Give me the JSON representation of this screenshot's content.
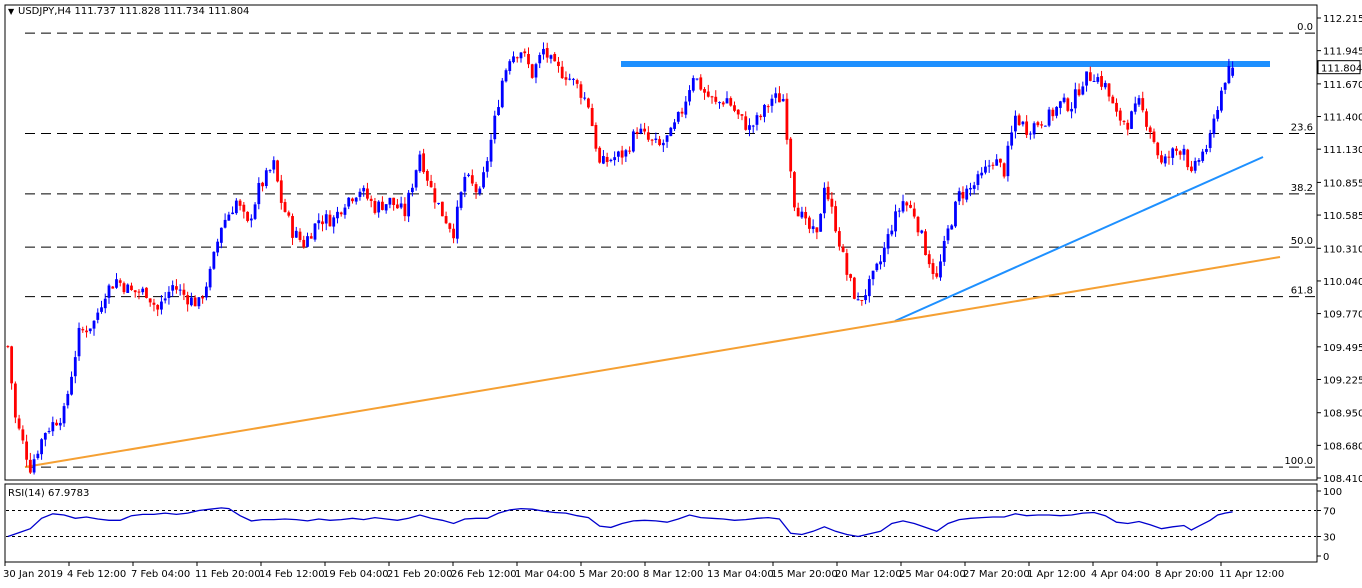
{
  "header": {
    "symbol_text": "USDJPY,H4  111.737 111.828 111.734 111.804",
    "indicator_text": "RSI(14) 67.9783"
  },
  "colors": {
    "bull": "#0000ff",
    "bear": "#ff0000",
    "resistance": "#1e90ff",
    "support_blue": "#1e90ff",
    "support_orange": "#f5a033",
    "rsi_line": "#0000cd",
    "fib_line": "#000000",
    "price_box": "#ffffff",
    "price_box_text": "#000000"
  },
  "chart_data": [
    {
      "type": "candlestick",
      "instrument": "USDJPY",
      "timeframe": "H4",
      "ohlc": {
        "open": 111.737,
        "high": 111.828,
        "low": 111.734,
        "close": 111.804
      },
      "current_price": 111.804,
      "current_price_label": "111.804",
      "ylim": [
        108.41,
        112.25
      ],
      "y_ticks": [
        112.215,
        111.945,
        111.67,
        111.4,
        111.13,
        110.855,
        110.585,
        110.31,
        110.04,
        109.77,
        109.495,
        109.225,
        108.95,
        108.68,
        108.41
      ],
      "y_tick_labels": [
        "112.215",
        "111.945",
        "111.670",
        "111.400",
        "111.130",
        "110.855",
        "110.585",
        "110.310",
        "110.040",
        "109.770",
        "109.495",
        "109.225",
        "108.950",
        "108.680",
        "108.410"
      ],
      "x_tick_labels": [
        "30 Jan 2019",
        "4 Feb 12:00",
        "7 Feb 04:00",
        "11 Feb 20:00",
        "14 Feb 12:00",
        "19 Feb 04:00",
        "21 Feb 20:00",
        "26 Feb 12:00",
        "1 Mar 04:00",
        "5 Mar 20:00",
        "8 Mar 12:00",
        "13 Mar 04:00",
        "15 Mar 20:00",
        "20 Mar 12:00",
        "25 Mar 04:00",
        "27 Mar 20:00",
        "1 Apr 12:00",
        "4 Apr 04:00",
        "8 Apr 20:00",
        "11 Apr 12:00"
      ],
      "fibonacci": [
        {
          "label": "0.0",
          "price": 112.09
        },
        {
          "label": "23.6",
          "price": 111.26
        },
        {
          "label": "38.2",
          "price": 110.76
        },
        {
          "label": "50.0",
          "price": 110.32
        },
        {
          "label": "61.8",
          "price": 109.91
        },
        {
          "label": "100.0",
          "price": 108.5
        }
      ],
      "price_path": [
        [
          0,
          109.5
        ],
        [
          2,
          108.9
        ],
        [
          6,
          108.5
        ],
        [
          10,
          108.8
        ],
        [
          15,
          108.95
        ],
        [
          19,
          109.6
        ],
        [
          23,
          109.7
        ],
        [
          26,
          109.95
        ],
        [
          29,
          110.05
        ],
        [
          33,
          109.95
        ],
        [
          37,
          109.95
        ],
        [
          40,
          109.8
        ],
        [
          44,
          110.0
        ],
        [
          48,
          109.9
        ],
        [
          51,
          109.85
        ],
        [
          54,
          110.1
        ],
        [
          57,
          110.5
        ],
        [
          61,
          110.7
        ],
        [
          64,
          110.5
        ],
        [
          67,
          110.8
        ],
        [
          71,
          111.0
        ],
        [
          73,
          110.7
        ],
        [
          76,
          110.45
        ],
        [
          79,
          110.35
        ],
        [
          83,
          110.55
        ],
        [
          87,
          110.55
        ],
        [
          90,
          110.7
        ],
        [
          94,
          110.8
        ],
        [
          98,
          110.65
        ],
        [
          102,
          110.7
        ],
        [
          106,
          110.6
        ],
        [
          110,
          111.1
        ],
        [
          113,
          110.8
        ],
        [
          116,
          110.6
        ],
        [
          119,
          110.45
        ],
        [
          122,
          110.9
        ],
        [
          126,
          110.75
        ],
        [
          129,
          111.2
        ],
        [
          132,
          111.7
        ],
        [
          134,
          111.9
        ],
        [
          137,
          111.95
        ],
        [
          140,
          111.75
        ],
        [
          143,
          111.95
        ],
        [
          146,
          111.8
        ],
        [
          149,
          111.75
        ],
        [
          152,
          111.65
        ],
        [
          155,
          111.5
        ],
        [
          158,
          111.0
        ],
        [
          161,
          111.05
        ],
        [
          165,
          111.1
        ],
        [
          168,
          111.3
        ],
        [
          171,
          111.2
        ],
        [
          174,
          111.15
        ],
        [
          177,
          111.25
        ],
        [
          180,
          111.45
        ],
        [
          183,
          111.75
        ],
        [
          186,
          111.6
        ],
        [
          189,
          111.5
        ],
        [
          192,
          111.55
        ],
        [
          195,
          111.4
        ],
        [
          198,
          111.3
        ],
        [
          201,
          111.4
        ],
        [
          204,
          111.55
        ],
        [
          207,
          111.55
        ],
        [
          210,
          110.7
        ],
        [
          213,
          110.5
        ],
        [
          216,
          110.4
        ],
        [
          218,
          110.85
        ],
        [
          221,
          110.5
        ],
        [
          224,
          110.1
        ],
        [
          227,
          109.85
        ],
        [
          230,
          110.0
        ],
        [
          233,
          110.2
        ],
        [
          236,
          110.5
        ],
        [
          239,
          110.7
        ],
        [
          242,
          110.6
        ],
        [
          245,
          110.3
        ],
        [
          248,
          110.05
        ],
        [
          251,
          110.45
        ],
        [
          254,
          110.75
        ],
        [
          257,
          110.8
        ],
        [
          260,
          110.9
        ],
        [
          263,
          111.05
        ],
        [
          266,
          110.95
        ],
        [
          269,
          111.4
        ],
        [
          272,
          111.3
        ],
        [
          275,
          111.35
        ],
        [
          278,
          111.4
        ],
        [
          281,
          111.5
        ],
        [
          284,
          111.5
        ],
        [
          287,
          111.7
        ],
        [
          290,
          111.75
        ],
        [
          293,
          111.65
        ],
        [
          296,
          111.4
        ],
        [
          299,
          111.35
        ],
        [
          302,
          111.5
        ],
        [
          305,
          111.3
        ],
        [
          308,
          111.0
        ],
        [
          311,
          111.1
        ],
        [
          314,
          111.15
        ],
        [
          316,
          110.9
        ],
        [
          318,
          111.05
        ],
        [
          321,
          111.2
        ],
        [
          323,
          111.5
        ],
        [
          325,
          111.72
        ],
        [
          327,
          111.804
        ]
      ],
      "rsi": {
        "name": "RSI(14)",
        "value": 67.9783,
        "ylim": [
          0,
          100
        ],
        "ticks": [
          100,
          70,
          30,
          0
        ],
        "levels": [
          70,
          30
        ],
        "values": [
          [
            0,
            30
          ],
          [
            3,
            36
          ],
          [
            6,
            42
          ],
          [
            9,
            58
          ],
          [
            12,
            65
          ],
          [
            15,
            63
          ],
          [
            18,
            58
          ],
          [
            21,
            60
          ],
          [
            24,
            57
          ],
          [
            27,
            55
          ],
          [
            30,
            55
          ],
          [
            33,
            62
          ],
          [
            36,
            64
          ],
          [
            39,
            64
          ],
          [
            42,
            66
          ],
          [
            45,
            64
          ],
          [
            48,
            66
          ],
          [
            51,
            70
          ],
          [
            54,
            72
          ],
          [
            57,
            74
          ],
          [
            59,
            73
          ],
          [
            62,
            62
          ],
          [
            65,
            54
          ],
          [
            68,
            56
          ],
          [
            71,
            56
          ],
          [
            74,
            57
          ],
          [
            77,
            56
          ],
          [
            80,
            54
          ],
          [
            83,
            57
          ],
          [
            86,
            55
          ],
          [
            89,
            56
          ],
          [
            92,
            58
          ],
          [
            95,
            56
          ],
          [
            98,
            59
          ],
          [
            101,
            57
          ],
          [
            104,
            55
          ],
          [
            107,
            58
          ],
          [
            110,
            63
          ],
          [
            113,
            58
          ],
          [
            116,
            55
          ],
          [
            119,
            50
          ],
          [
            122,
            57
          ],
          [
            125,
            58
          ],
          [
            128,
            58
          ],
          [
            131,
            66
          ],
          [
            134,
            71
          ],
          [
            137,
            73
          ],
          [
            140,
            72
          ],
          [
            143,
            69
          ],
          [
            146,
            67
          ],
          [
            149,
            66
          ],
          [
            152,
            62
          ],
          [
            155,
            59
          ],
          [
            158,
            46
          ],
          [
            161,
            44
          ],
          [
            164,
            50
          ],
          [
            167,
            54
          ],
          [
            170,
            55
          ],
          [
            173,
            54
          ],
          [
            176,
            52
          ],
          [
            179,
            57
          ],
          [
            182,
            63
          ],
          [
            185,
            59
          ],
          [
            188,
            58
          ],
          [
            191,
            57
          ],
          [
            194,
            55
          ],
          [
            197,
            56
          ],
          [
            200,
            58
          ],
          [
            203,
            59
          ],
          [
            206,
            57
          ],
          [
            209,
            35
          ],
          [
            212,
            33
          ],
          [
            215,
            38
          ],
          [
            218,
            45
          ],
          [
            221,
            38
          ],
          [
            224,
            33
          ],
          [
            227,
            30
          ],
          [
            230,
            34
          ],
          [
            233,
            38
          ],
          [
            236,
            50
          ],
          [
            239,
            54
          ],
          [
            242,
            50
          ],
          [
            245,
            44
          ],
          [
            248,
            38
          ],
          [
            251,
            50
          ],
          [
            254,
            56
          ],
          [
            257,
            58
          ],
          [
            260,
            59
          ],
          [
            263,
            60
          ],
          [
            266,
            60
          ],
          [
            269,
            65
          ],
          [
            272,
            62
          ],
          [
            275,
            63
          ],
          [
            278,
            63
          ],
          [
            281,
            62
          ],
          [
            284,
            63
          ],
          [
            287,
            66
          ],
          [
            290,
            67
          ],
          [
            293,
            62
          ],
          [
            296,
            52
          ],
          [
            299,
            50
          ],
          [
            302,
            53
          ],
          [
            305,
            48
          ],
          [
            308,
            42
          ],
          [
            311,
            45
          ],
          [
            314,
            47
          ],
          [
            316,
            40
          ],
          [
            318,
            46
          ],
          [
            321,
            55
          ],
          [
            323,
            63
          ],
          [
            325,
            66
          ],
          [
            327,
            67.98
          ]
        ]
      }
    }
  ]
}
